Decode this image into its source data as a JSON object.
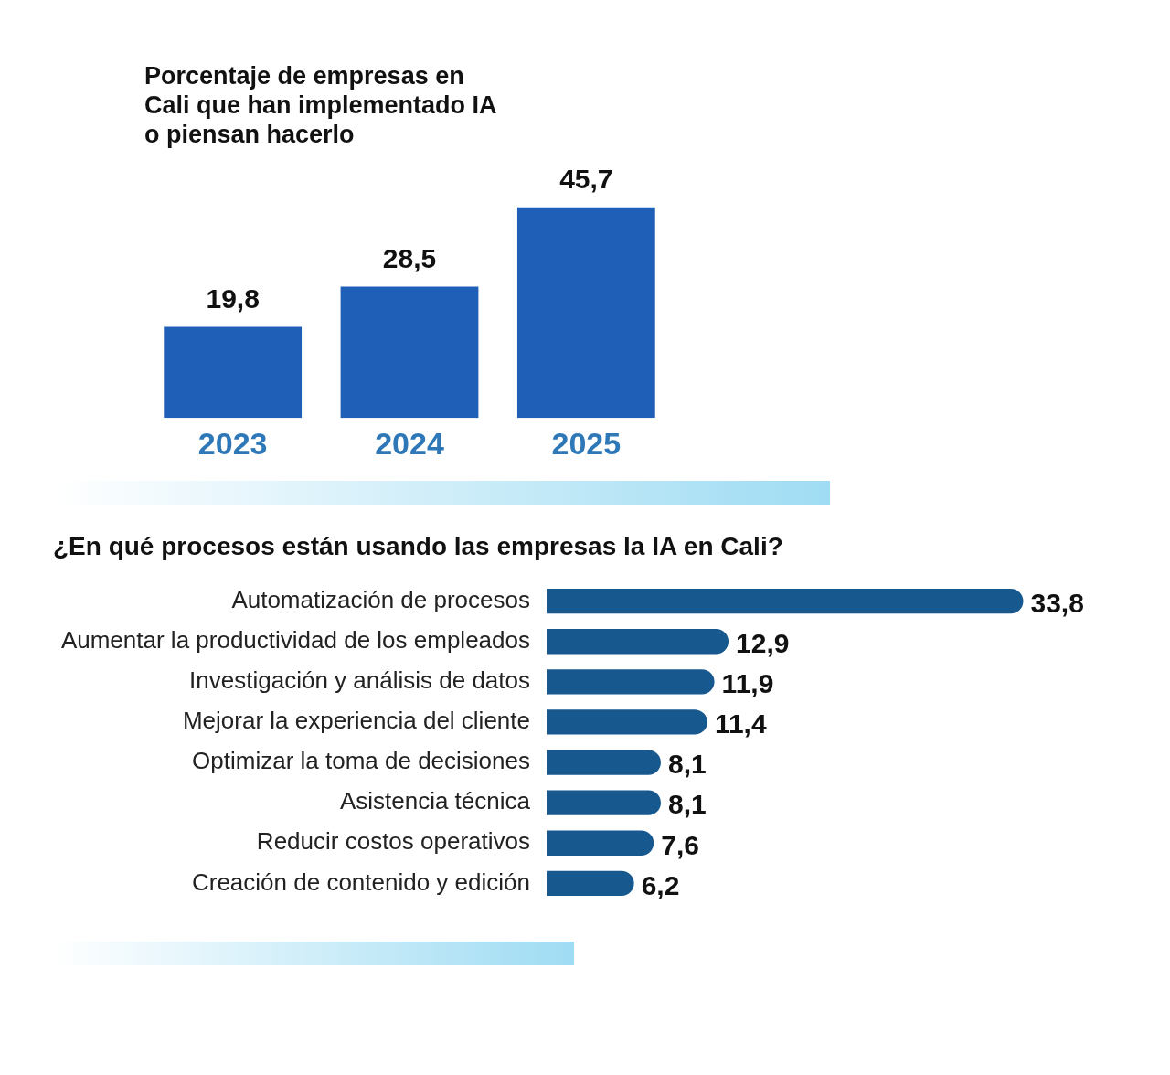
{
  "chart_data": [
    {
      "type": "bar",
      "title": "Porcentaje de empresas en Cali que han implementado IA o piensan hacerlo",
      "categories": [
        "2023",
        "2024",
        "2025"
      ],
      "values": [
        19.8,
        28.5,
        45.7
      ],
      "value_labels": [
        "19,8",
        "28,5",
        "45,7"
      ],
      "color": "#1f5fb8",
      "tick_labels": "x"
    },
    {
      "type": "bar",
      "orientation": "horizontal",
      "title": "¿En qué procesos están usando las empresas la IA en Cali?",
      "categories": [
        "Automatización de procesos",
        "Aumentar la productividad de los empleados",
        "Investigación y análisis de datos",
        "Mejorar la experiencia del cliente",
        "Optimizar la toma de decisiones",
        "Asistencia técnica",
        "Reducir costos operativos",
        "Creación de contenido y edición"
      ],
      "values": [
        33.8,
        12.9,
        11.9,
        11.4,
        8.1,
        8.1,
        7.6,
        6.2
      ],
      "value_labels": [
        "33,8",
        "12,9",
        "11,9",
        "11,4",
        "8,1",
        "8,1",
        "7,6",
        "6,2"
      ],
      "color": "#17588f",
      "tick_labels": "y"
    }
  ]
}
